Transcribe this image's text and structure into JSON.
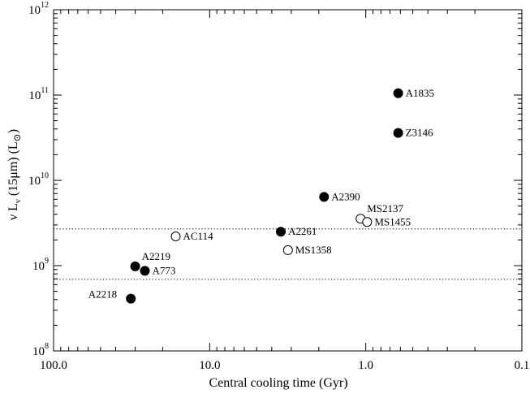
{
  "chart_data": {
    "type": "scatter",
    "title": "",
    "xlabel": "Central cooling time (Gyr)",
    "ylabel": "ν L",
    "ylabel_sub": "ν",
    "ylabel_suffix": " (15μm) (L",
    "ylabel_sun": "⊙",
    "ylabel_close": ")",
    "x_scale": "log",
    "x_reversed": true,
    "xlim": [
      100.0,
      0.1
    ],
    "x_ticks": [
      {
        "value": 100,
        "label": "100.0"
      },
      {
        "value": 10,
        "label": "10.0"
      },
      {
        "value": 1,
        "label": "1.0"
      },
      {
        "value": 0.1,
        "label": "0.1"
      }
    ],
    "y_scale": "log",
    "ylim": [
      100000000.0,
      1000000000000.0
    ],
    "y_ticks": [
      {
        "value": 100000000.0,
        "base": "10",
        "exp": "8"
      },
      {
        "value": 1000000000.0,
        "base": "10",
        "exp": "9"
      },
      {
        "value": 10000000000.0,
        "base": "10",
        "exp": "10"
      },
      {
        "value": 100000000000.0,
        "base": "10",
        "exp": "11"
      },
      {
        "value": 1000000000000.0,
        "base": "10",
        "exp": "12"
      }
    ],
    "grid": false,
    "reference_lines_y": [
      2700000000.0,
      690000000.0
    ],
    "points": [
      {
        "label": "A1835",
        "x": 0.62,
        "y": 105000000000.0,
        "filled": true,
        "label_pos": "right"
      },
      {
        "label": "Z3146",
        "x": 0.62,
        "y": 36000000000.0,
        "filled": true,
        "label_pos": "right"
      },
      {
        "label": "A2390",
        "x": 1.85,
        "y": 6400000000.0,
        "filled": true,
        "label_pos": "right"
      },
      {
        "label": "MS2137",
        "x": 1.08,
        "y": 3550000000.0,
        "filled": false,
        "label_pos": "above-right"
      },
      {
        "label": "MS1455",
        "x": 0.98,
        "y": 3250000000.0,
        "filled": false,
        "label_pos": "right"
      },
      {
        "label": "A2261",
        "x": 3.5,
        "y": 2500000000.0,
        "filled": true,
        "label_pos": "right"
      },
      {
        "label": "MS1358",
        "x": 3.15,
        "y": 1520000000.0,
        "filled": false,
        "label_pos": "right"
      },
      {
        "label": "AC114",
        "x": 16.5,
        "y": 2200000000.0,
        "filled": false,
        "label_pos": "right"
      },
      {
        "label": "A2219",
        "x": 30.0,
        "y": 980000000.0,
        "filled": true,
        "label_pos": "above-right"
      },
      {
        "label": "A773",
        "x": 26.0,
        "y": 870000000.0,
        "filled": true,
        "label_pos": "right"
      },
      {
        "label": "A2218",
        "x": 32.0,
        "y": 410000000.0,
        "filled": true,
        "label_pos": "left"
      }
    ]
  }
}
